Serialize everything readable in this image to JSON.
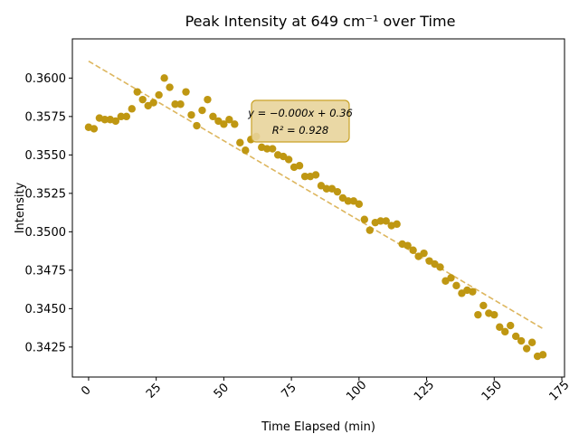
{
  "chart_data": {
    "type": "scatter",
    "title": "Peak Intensity at 649 cm⁻¹ over Time",
    "xlabel": "Time Elapsed (min)",
    "ylabel": "Intensity",
    "xlim": [
      -6,
      176
    ],
    "ylim": [
      0.34055,
      0.36255
    ],
    "xticks": [
      0,
      25,
      50,
      75,
      100,
      125,
      150,
      175
    ],
    "xtick_labels": [
      "0",
      "25",
      "50",
      "75",
      "100",
      "125",
      "150",
      "175"
    ],
    "yticks": [
      0.3425,
      0.345,
      0.3475,
      0.35,
      0.3525,
      0.355,
      0.3575,
      0.36
    ],
    "ytick_labels": [
      "0.3425",
      "0.3450",
      "0.3475",
      "0.3500",
      "0.3525",
      "0.3550",
      "0.3575",
      "0.3600"
    ],
    "grid": false,
    "colors": {
      "points": "#bf9712",
      "trendline": "#ddb65e",
      "annotation_bg": "#e8d49b",
      "annotation_edge": "#c9a227"
    },
    "x": [
      0,
      2,
      4,
      6,
      8,
      10,
      12,
      14,
      16,
      18,
      20,
      22,
      24,
      26,
      28,
      30,
      32,
      34,
      36,
      38,
      40,
      42,
      44,
      46,
      48,
      50,
      52,
      54,
      56,
      58,
      60,
      62,
      64,
      66,
      68,
      70,
      72,
      74,
      76,
      78,
      80,
      82,
      84,
      86,
      88,
      90,
      92,
      94,
      96,
      98,
      100,
      102,
      104,
      106,
      108,
      110,
      112,
      114,
      116,
      118,
      120,
      122,
      124,
      126,
      128,
      130,
      132,
      134,
      136,
      138,
      140,
      142,
      144,
      146,
      148,
      150,
      152,
      154,
      156,
      158,
      160,
      162,
      164,
      166,
      168
    ],
    "y": [
      0.3568,
      0.3567,
      0.3574,
      0.3573,
      0.3573,
      0.3572,
      0.3575,
      0.3575,
      0.358,
      0.3591,
      0.3586,
      0.3582,
      0.3584,
      0.3589,
      0.36,
      0.3594,
      0.3583,
      0.3583,
      0.3591,
      0.3576,
      0.3569,
      0.3579,
      0.3586,
      0.3575,
      0.3572,
      0.357,
      0.3573,
      0.357,
      0.3558,
      0.3553,
      0.356,
      0.3562,
      0.3555,
      0.3554,
      0.3554,
      0.355,
      0.3549,
      0.3547,
      0.3542,
      0.3543,
      0.3536,
      0.3536,
      0.3537,
      0.353,
      0.3528,
      0.3528,
      0.3526,
      0.3522,
      0.352,
      0.352,
      0.3518,
      0.3508,
      0.3501,
      0.3506,
      0.3507,
      0.3507,
      0.3504,
      0.3505,
      0.3492,
      0.3491,
      0.3488,
      0.3484,
      0.3486,
      0.3481,
      0.3479,
      0.3477,
      0.3468,
      0.347,
      0.3465,
      0.346,
      0.3462,
      0.3461,
      0.3446,
      0.3452,
      0.3447,
      0.3446,
      0.3438,
      0.3435,
      0.3439,
      0.3432,
      0.3429,
      0.3424,
      0.3428,
      0.3419,
      0.342
    ],
    "trendline": {
      "style": "dashed",
      "x": [
        0,
        168
      ],
      "y": [
        0.3611,
        0.3437
      ]
    },
    "annotation": {
      "line1": "y = −0.000x + 0.36",
      "line2": "R² = 0.928"
    }
  }
}
